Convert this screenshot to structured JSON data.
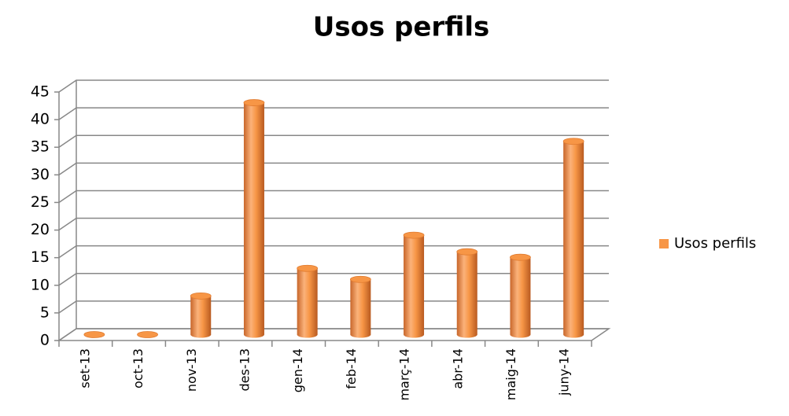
{
  "chart_data": {
    "type": "bar",
    "title": "Usos perfils",
    "categories": [
      "set-13",
      "oct-13",
      "nov-13",
      "des-13",
      "gen-14",
      "feb-14",
      "març-14",
      "abr-14",
      "maig-14",
      "juny-14"
    ],
    "series": [
      {
        "name": "Usos perfils",
        "color": "#f79646",
        "values": [
          0,
          0,
          7,
          42,
          12,
          10,
          18,
          15,
          14,
          35
        ]
      }
    ],
    "ylim": [
      0,
      45
    ],
    "yticks": [
      0,
      5,
      10,
      15,
      20,
      25,
      30,
      35,
      40,
      45
    ],
    "grid": true,
    "legend": "right"
  }
}
